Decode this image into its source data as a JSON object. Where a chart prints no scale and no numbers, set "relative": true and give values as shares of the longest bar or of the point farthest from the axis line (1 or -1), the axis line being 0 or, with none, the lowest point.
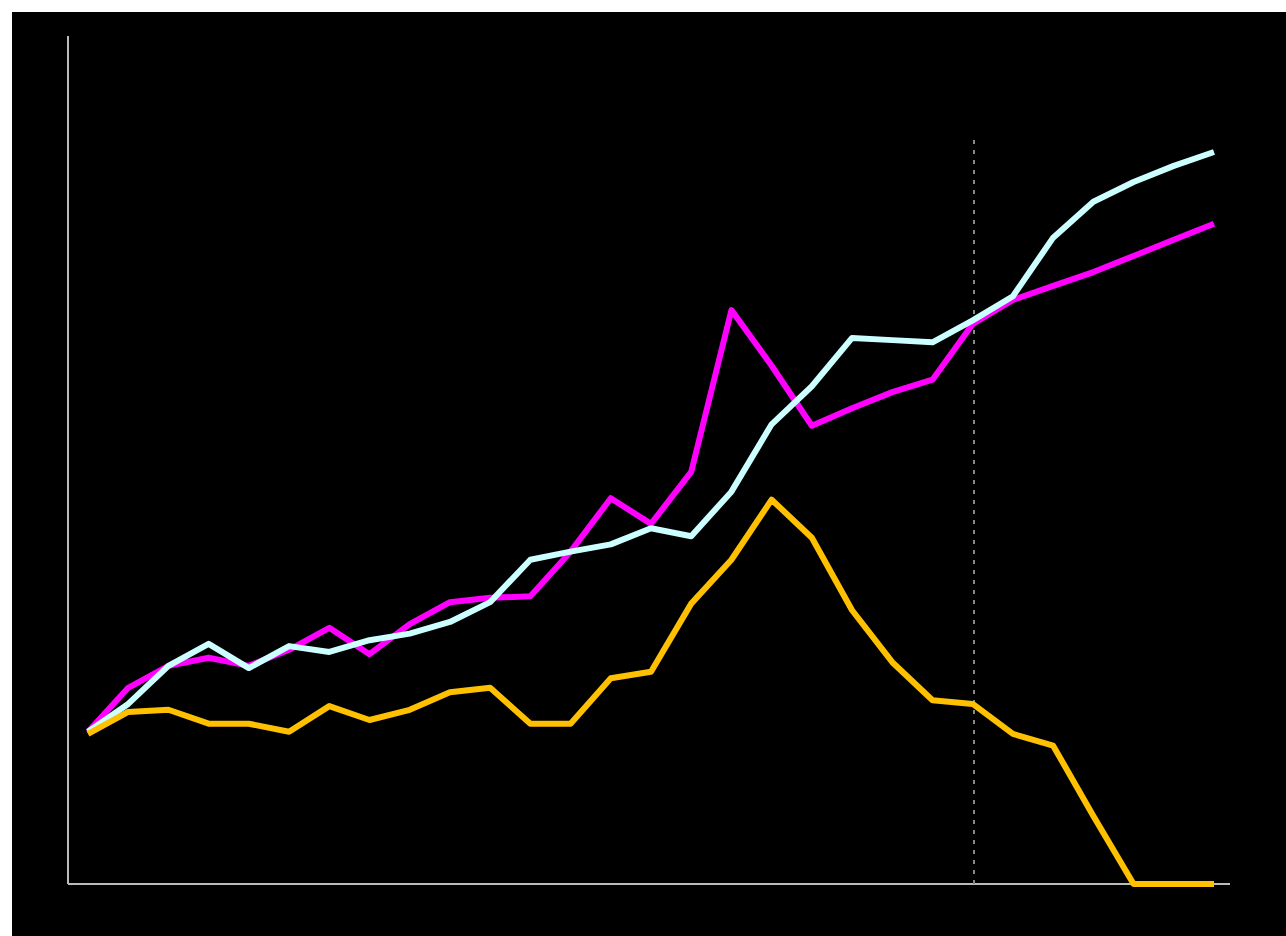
{
  "chart_data": {
    "type": "line",
    "relative": true,
    "grid": false,
    "marker": "none",
    "line_style": "solid",
    "categories": [
      null,
      null,
      null,
      null,
      null,
      null,
      null,
      null,
      null,
      null,
      null,
      null,
      null,
      null,
      null,
      null,
      null,
      null,
      null,
      null,
      null,
      null,
      null,
      null,
      null,
      null,
      null,
      null,
      null
    ],
    "series": [
      {
        "color": "#ff00ff",
        "values": [
          0.208,
          0.268,
          0.298,
          0.309,
          0.298,
          0.32,
          0.35,
          0.314,
          0.355,
          0.385,
          0.391,
          0.393,
          0.454,
          0.527,
          0.492,
          0.563,
          0.784,
          0.708,
          0.626,
          0.65,
          0.672,
          0.689,
          0.765,
          0.798,
          0.817,
          0.836,
          0.858,
          0.88,
          0.902
        ]
      },
      {
        "color": "#ccffff",
        "values": [
          0.208,
          0.246,
          0.298,
          0.328,
          0.295,
          0.325,
          0.317,
          0.333,
          0.342,
          0.358,
          0.385,
          0.443,
          0.454,
          0.464,
          0.486,
          0.475,
          0.536,
          0.628,
          0.68,
          0.746,
          0.743,
          0.74,
          0.77,
          0.803,
          0.883,
          0.932,
          0.959,
          0.981,
          1
        ]
      },
      {
        "color": "#ffc000",
        "values": [
          0.205,
          0.235,
          0.238,
          0.219,
          0.219,
          0.208,
          0.243,
          0.224,
          0.238,
          0.262,
          0.268,
          0.219,
          0.219,
          0.281,
          0.29,
          0.383,
          0.443,
          0.525,
          0.473,
          0.374,
          0.303,
          0.251,
          0.246,
          0.205,
          0.189,
          0.093,
          0,
          0,
          0
        ]
      }
    ]
  }
}
